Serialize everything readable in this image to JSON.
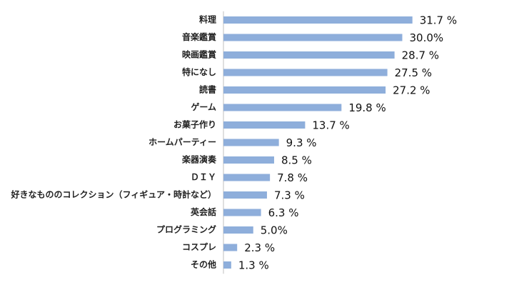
{
  "chart_data": {
    "type": "bar",
    "orientation": "horizontal",
    "categories": [
      "料理",
      "音楽鑑賞",
      "映画鑑賞",
      "特になし",
      "読書",
      "ゲーム",
      "お菓子作り",
      "ホームパーティー",
      "楽器演奏",
      "ＤＩＹ",
      "好きなもののコレクション（フィギュア・時計など）",
      "英会話",
      "プログラミング",
      "コスプレ",
      "その他"
    ],
    "values": [
      31.7,
      30.0,
      28.7,
      27.5,
      27.2,
      19.8,
      13.7,
      9.3,
      8.5,
      7.8,
      7.3,
      6.3,
      5.0,
      2.3,
      1.3
    ],
    "value_labels": [
      "31.7 %",
      "30.0%",
      "28.7 %",
      "27.5 %",
      "27.2 %",
      "19.8 %",
      "13.7 %",
      "9.3 %",
      "8.5 %",
      "7.8 %",
      "7.3 %",
      "6.3 %",
      "5.0%",
      "2.3 %",
      "1.3 %"
    ],
    "title": "",
    "xlabel": "",
    "ylabel": "",
    "xlim": [
      0,
      34
    ],
    "grid": false,
    "legend": "none",
    "bar_color": "#8eaedb"
  }
}
